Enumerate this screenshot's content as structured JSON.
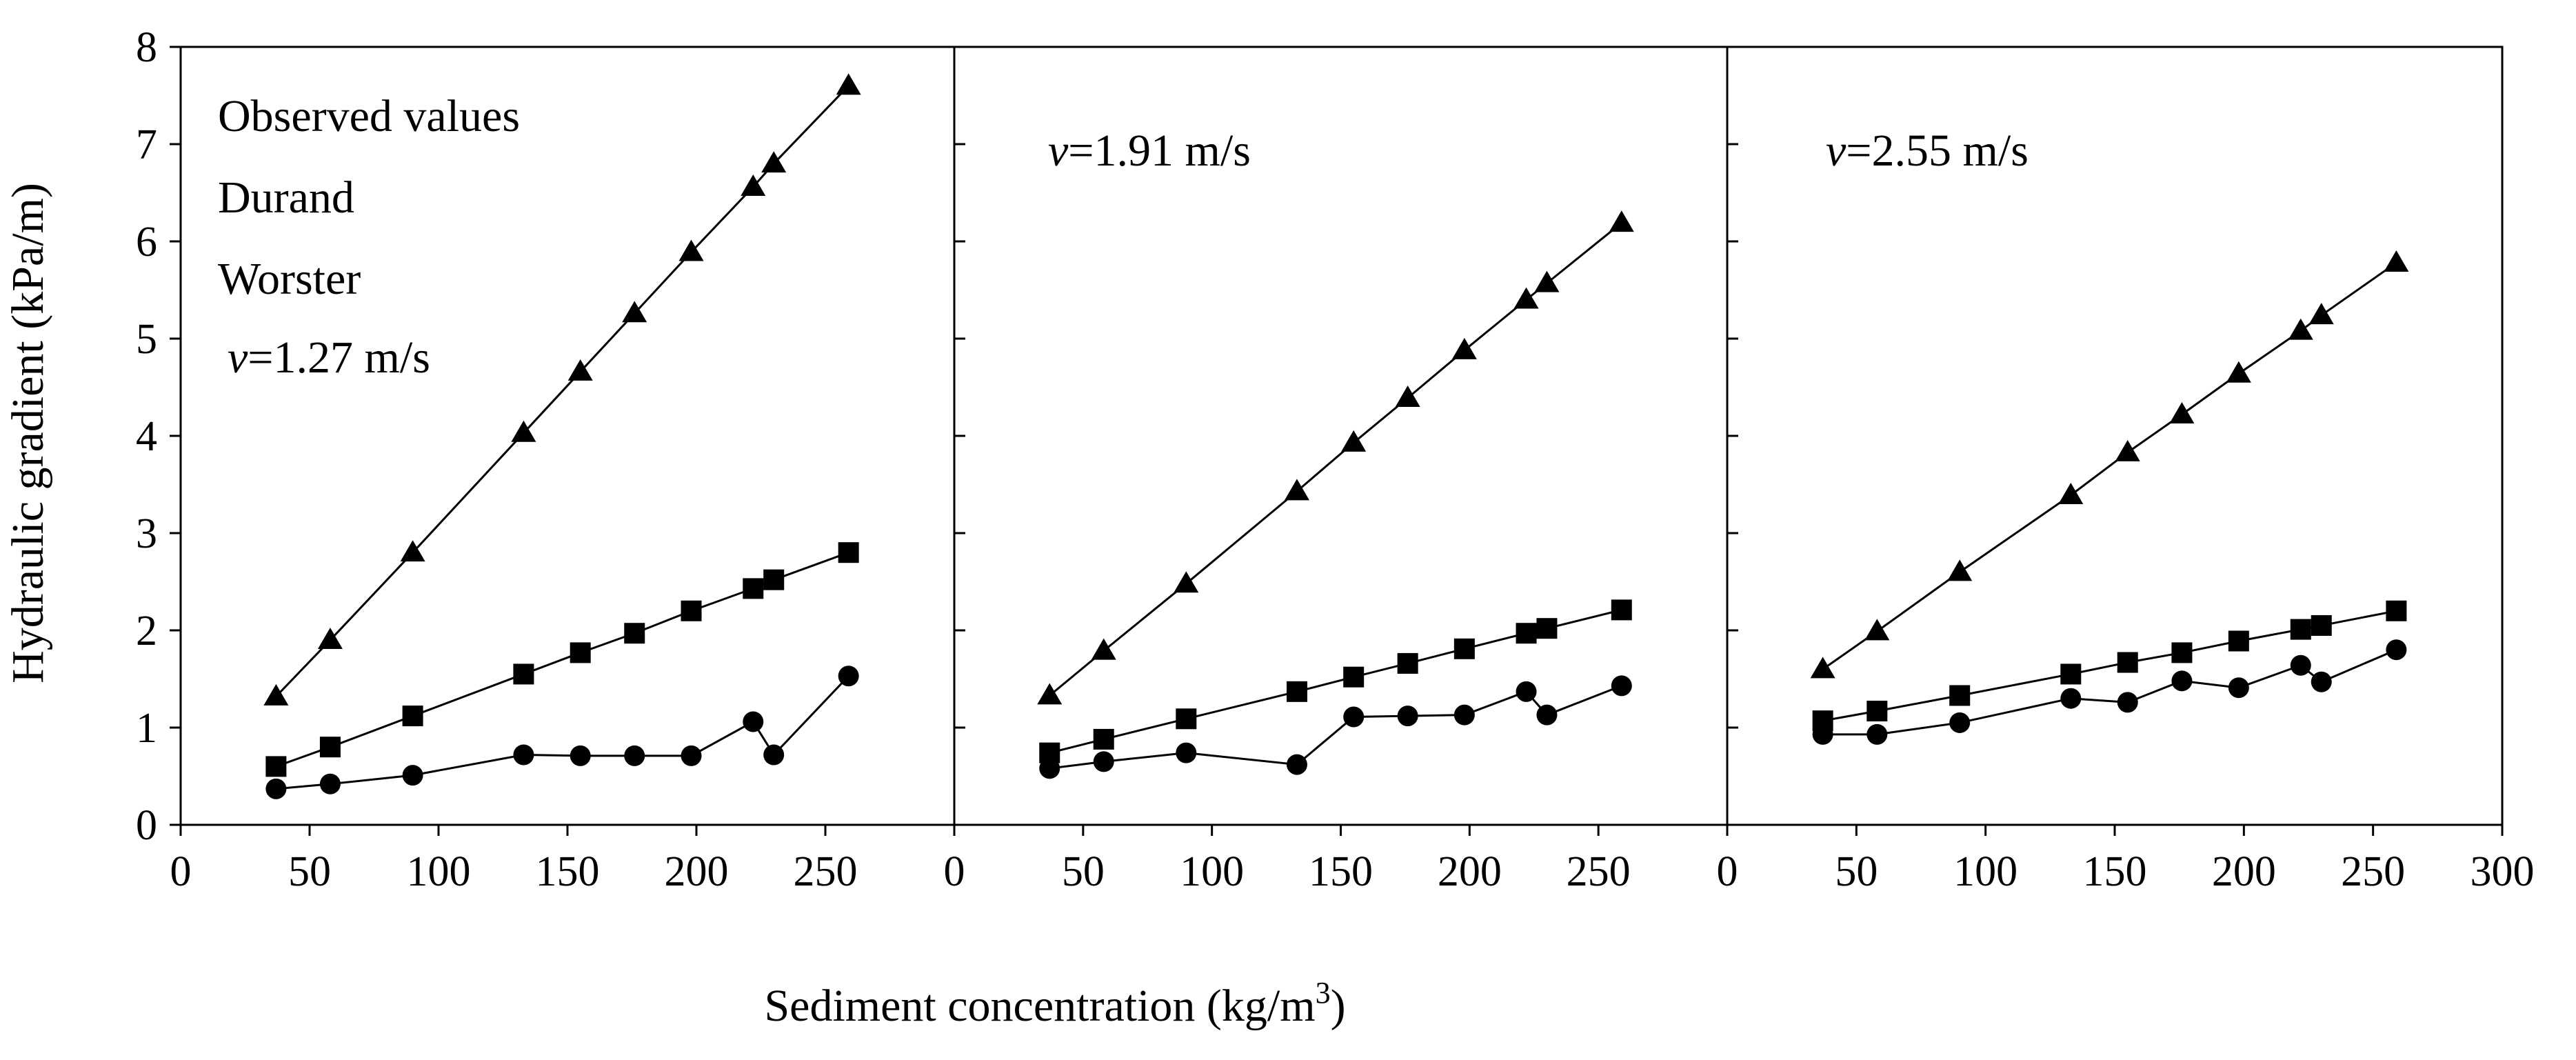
{
  "chart_data": {
    "type": "line",
    "ylabel": "Hydraulic gradient (kPa/m)",
    "xlabel": "Sediment concentration (kg/m³)",
    "xlabel_main": "Sediment concentration (kg/m",
    "xlabel_sup": "3",
    "xlabel_end": ")",
    "ylim": [
      0,
      8
    ],
    "yticks": [
      0,
      1,
      2,
      3,
      4,
      5,
      6,
      7,
      8
    ],
    "legend": {
      "placement": "top-left of first panel",
      "entries": [
        {
          "label": "Observed values",
          "marker": "circle"
        },
        {
          "label": "Durand",
          "marker": "square"
        },
        {
          "label": "Worster",
          "marker": "triangle"
        }
      ]
    },
    "panels": [
      {
        "annotation_var": "v",
        "annotation_rest": "=1.27 m/s",
        "xlim": [
          0,
          300
        ],
        "xticks": [
          0,
          50,
          100,
          150,
          200,
          250
        ],
        "x": [
          37,
          58,
          90,
          133,
          155,
          176,
          198,
          222,
          230,
          259
        ],
        "series": [
          {
            "name": "Observed values",
            "marker": "circle",
            "values": [
              0.37,
              0.42,
              0.51,
              0.72,
              0.71,
              0.71,
              0.71,
              1.06,
              0.72,
              1.53
            ]
          },
          {
            "name": "Durand",
            "marker": "square",
            "values": [
              0.6,
              0.8,
              1.12,
              1.55,
              1.77,
              1.97,
              2.2,
              2.43,
              2.52,
              2.8
            ]
          },
          {
            "name": "Worster",
            "marker": "triangle",
            "values": [
              1.32,
              1.9,
              2.8,
              4.03,
              4.66,
              5.26,
              5.89,
              6.56,
              6.8,
              7.6
            ]
          }
        ]
      },
      {
        "annotation_var": "v",
        "annotation_rest": "=1.91 m/s",
        "xlim": [
          0,
          300
        ],
        "xticks": [
          0,
          50,
          100,
          150,
          200,
          250
        ],
        "x": [
          37,
          58,
          90,
          133,
          155,
          176,
          198,
          222,
          230,
          259
        ],
        "series": [
          {
            "name": "Observed values",
            "marker": "circle",
            "values": [
              0.58,
              0.65,
              0.74,
              0.62,
              1.11,
              1.12,
              1.13,
              1.37,
              1.13,
              1.43
            ]
          },
          {
            "name": "Durand",
            "marker": "square",
            "values": [
              0.74,
              0.88,
              1.09,
              1.37,
              1.52,
              1.66,
              1.81,
              1.97,
              2.02,
              2.21
            ]
          },
          {
            "name": "Worster",
            "marker": "triangle",
            "values": [
              1.33,
              1.79,
              2.48,
              3.43,
              3.93,
              4.39,
              4.88,
              5.4,
              5.57,
              6.19
            ]
          }
        ]
      },
      {
        "annotation_var": "v",
        "annotation_rest": "=2.55 m/s",
        "xlim": [
          0,
          300
        ],
        "xticks": [
          0,
          50,
          100,
          150,
          200,
          250,
          300
        ],
        "x": [
          37,
          58,
          90,
          133,
          155,
          176,
          198,
          222,
          230,
          259
        ],
        "series": [
          {
            "name": "Observed values",
            "marker": "circle",
            "values": [
              0.93,
              0.93,
              1.05,
              1.3,
              1.26,
              1.48,
              1.41,
              1.64,
              1.47,
              1.8
            ]
          },
          {
            "name": "Durand",
            "marker": "square",
            "values": [
              1.07,
              1.17,
              1.33,
              1.55,
              1.67,
              1.77,
              1.89,
              2.01,
              2.05,
              2.2
            ]
          },
          {
            "name": "Worster",
            "marker": "triangle",
            "values": [
              1.6,
              1.99,
              2.6,
              3.39,
              3.83,
              4.22,
              4.64,
              5.08,
              5.24,
              5.78
            ]
          }
        ]
      }
    ]
  }
}
